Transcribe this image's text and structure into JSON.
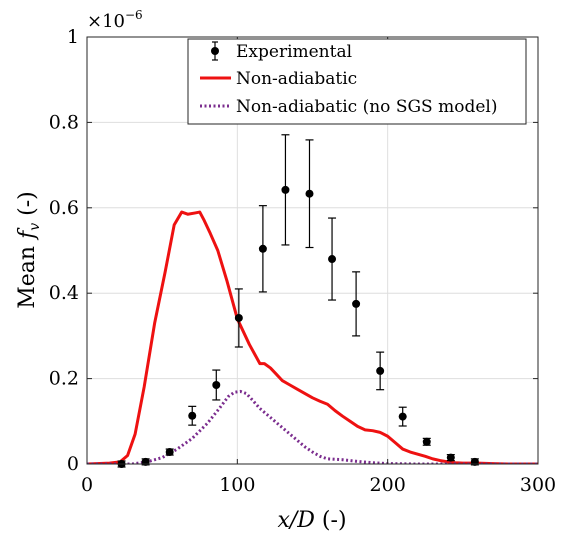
{
  "chart_data": {
    "type": "line",
    "xlabel": "x/D (-)",
    "ylabel": "Mean f_v (-)",
    "ylabel_parts": {
      "prefix": "Mean ",
      "var": "f",
      "sub": "v",
      "suffix": " (-)"
    },
    "xlabel_parts": {
      "var": "x/D",
      "suffix": " (-)"
    },
    "y_multiplier": "×10^-6",
    "y_multiplier_parts": {
      "base": "×10",
      "exp": "−6"
    },
    "xlim": [
      0,
      300
    ],
    "ylim": [
      0,
      1
    ],
    "xticks": [
      0,
      100,
      200,
      300
    ],
    "xtick_labels": [
      "0",
      "100",
      "200",
      "300"
    ],
    "yticks": [
      0,
      0.2,
      0.4,
      0.6,
      0.8,
      1
    ],
    "ytick_labels": [
      "0",
      "0.2",
      "0.4",
      "0.6",
      "0.8",
      "1"
    ],
    "grid": true,
    "legend_position": "top-right",
    "series": [
      {
        "name": "Experimental",
        "kind": "errorbar",
        "color": "#000000",
        "x": [
          23,
          39,
          55,
          70,
          86,
          101,
          117,
          132,
          148,
          163,
          179,
          195,
          210,
          226,
          242,
          258
        ],
        "y": [
          0.0,
          0.005,
          0.028,
          0.113,
          0.185,
          0.342,
          0.504,
          0.642,
          0.633,
          0.48,
          0.375,
          0.218,
          0.111,
          0.052,
          0.015,
          0.005
        ],
        "err": [
          0.0,
          0.0,
          0.0,
          0.022,
          0.035,
          0.068,
          0.101,
          0.129,
          0.126,
          0.096,
          0.075,
          0.044,
          0.022,
          0.008,
          0.0,
          0.0
        ]
      },
      {
        "name": "Non-adiabatic",
        "kind": "line",
        "color": "#ee1111",
        "style": "solid",
        "x": [
          0,
          15,
          22,
          27,
          32,
          38,
          45,
          52,
          58,
          63,
          67,
          72,
          75,
          78,
          82,
          87,
          93,
          100,
          108,
          115,
          118,
          122,
          126,
          130,
          135,
          140,
          145,
          150,
          155,
          160,
          165,
          170,
          175,
          180,
          185,
          190,
          195,
          200,
          205,
          210,
          215,
          220,
          225,
          230,
          235,
          240,
          245,
          250,
          255,
          260,
          270,
          280,
          290,
          300
        ],
        "y": [
          0.0,
          0.002,
          0.005,
          0.02,
          0.07,
          0.18,
          0.33,
          0.45,
          0.56,
          0.59,
          0.585,
          0.588,
          0.59,
          0.57,
          0.54,
          0.5,
          0.43,
          0.34,
          0.28,
          0.235,
          0.235,
          0.225,
          0.21,
          0.195,
          0.185,
          0.175,
          0.165,
          0.155,
          0.147,
          0.14,
          0.125,
          0.112,
          0.1,
          0.088,
          0.08,
          0.078,
          0.074,
          0.065,
          0.05,
          0.035,
          0.028,
          0.023,
          0.018,
          0.012,
          0.008,
          0.005,
          0.003,
          0.002,
          0.002,
          0.002,
          0.001,
          0.0,
          0.0,
          0.0
        ]
      },
      {
        "name": "Non-adiabatic (no SGS model)",
        "kind": "line",
        "color": "#7b2d8e",
        "style": "dotted",
        "x": [
          0,
          30,
          40,
          50,
          60,
          70,
          80,
          88,
          94,
          98,
          102,
          106,
          110,
          115,
          120,
          125,
          130,
          135,
          140,
          145,
          150,
          155,
          160,
          170,
          180,
          190,
          200,
          220,
          240,
          260,
          280,
          300
        ],
        "y": [
          0.0,
          0.0,
          0.005,
          0.015,
          0.035,
          0.06,
          0.095,
          0.13,
          0.158,
          0.168,
          0.17,
          0.165,
          0.15,
          0.13,
          0.115,
          0.1,
          0.085,
          0.07,
          0.055,
          0.04,
          0.028,
          0.018,
          0.012,
          0.01,
          0.006,
          0.003,
          0.001,
          0.0,
          0.0,
          0.0,
          0.0,
          0.0
        ]
      }
    ]
  }
}
